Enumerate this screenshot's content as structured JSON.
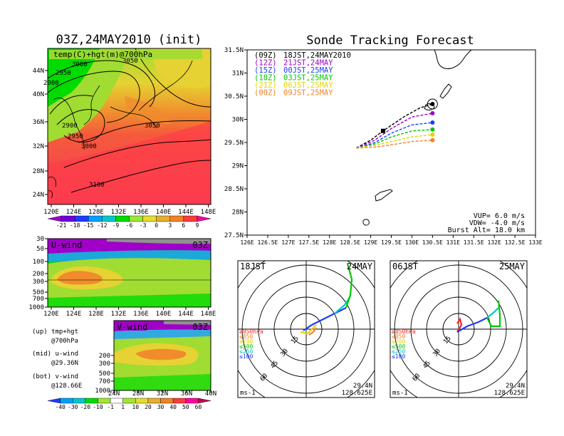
{
  "map_panel": {
    "title": "03Z,24MAY2010 (init)",
    "field_label": "temp(C)+hgt(m)@700hPa",
    "lat_ticks": [
      "44N",
      "40N",
      "36N",
      "32N",
      "28N",
      "24N"
    ],
    "lon_ticks": [
      "120E",
      "124E",
      "128E",
      "132E",
      "136E",
      "140E",
      "144E",
      "148E"
    ],
    "contour_labels": [
      "3000",
      "3050",
      "2950",
      "2900",
      "2900",
      "2950",
      "3000",
      "3050",
      "3100"
    ],
    "colorbar": {
      "labels": [
        "-21",
        "-18",
        "-15",
        "-12",
        "-9",
        "-6",
        "-3",
        "0",
        "3",
        "6",
        "9"
      ],
      "colors": [
        "#a000c8",
        "#6e00dc",
        "#1e3cff",
        "#00a0ff",
        "#00c8c8",
        "#00dc00",
        "#a0e632",
        "#e6dc32",
        "#e6af2d",
        "#f08228",
        "#fa3c3c",
        "#ff00a0"
      ]
    }
  },
  "uwind_panel": {
    "label": "U-wind",
    "time": "03Z",
    "pressure_ticks": [
      "30",
      "50",
      "100",
      "200",
      "300",
      "500",
      "700",
      "1000"
    ],
    "lon_ticks": [
      "120E",
      "124E",
      "128E",
      "132E",
      "136E",
      "140E",
      "144E",
      "148E"
    ]
  },
  "vwind_panel": {
    "label": "V-wind",
    "time": "03Z",
    "pressure_ticks": [
      "200",
      "300",
      "500",
      "700",
      "1000"
    ],
    "lat_ticks": [
      "24N",
      "28N",
      "32N",
      "36N",
      "40N"
    ],
    "colorbar": {
      "labels": [
        "-40",
        "-30",
        "-20",
        "-10",
        "-1",
        "1",
        "10",
        "20",
        "30",
        "40",
        "50",
        "60"
      ],
      "colors": [
        "#1e3cff",
        "#00a0ff",
        "#00c8c8",
        "#00dc00",
        "#a0e632",
        "#ffffff",
        "#a0e632",
        "#e6dc32",
        "#e6af2d",
        "#f08228",
        "#fa3c3c",
        "#ff00a0",
        "#c80050"
      ]
    }
  },
  "legend_notes": [
    {
      "head": "(up) tmp+hgt",
      "sub": "@700hPa"
    },
    {
      "head": "(mid) u-wind",
      "sub": "@29.36N"
    },
    {
      "head": "(bot) v-wind",
      "sub": "@128.66E"
    }
  ],
  "tracking": {
    "title": "Sonde Tracking Forecast",
    "lat_ticks": [
      "31.5N",
      "31N",
      "30.5N",
      "30N",
      "29.5N",
      "29N",
      "28.5N",
      "28N",
      "27.5N"
    ],
    "lon_ticks": [
      "126E",
      "126.5E",
      "127E",
      "127.5E",
      "128E",
      "128.5E",
      "129E",
      "129.5E",
      "130E",
      "130.5E",
      "131E",
      "131.5E",
      "132E",
      "132.5E",
      "133E"
    ],
    "series": [
      {
        "code": "(09Z)",
        "label": "18JST,24MAY2010",
        "color": "#000000"
      },
      {
        "code": "(12Z)",
        "label": "21JST,24MAY",
        "color": "#a000c8"
      },
      {
        "code": "(15Z)",
        "label": "00JST,25MAY",
        "color": "#1e3cff"
      },
      {
        "code": "(18Z)",
        "label": "03JST,25MAY",
        "color": "#00c800"
      },
      {
        "code": "(21Z)",
        "label": "06JST,25MAY",
        "color": "#e6d200"
      },
      {
        "code": "(00Z)",
        "label": "09JST,25MAY",
        "color": "#f08228"
      }
    ],
    "params": [
      "VUP= 6.0 m/s",
      "VDW= -4.0 m/s",
      "Burst Alt= 18.0 km"
    ]
  },
  "chart_data": [
    {
      "type": "line",
      "title": "Sonde Tracking Forecast",
      "xlim": [
        126,
        133
      ],
      "ylim": [
        27.5,
        31.5
      ],
      "series": [
        {
          "name": "(09Z) 18JST,24MAY2010",
          "x": [
            128.65,
            129.0,
            129.3,
            129.8,
            130.2,
            130.5
          ],
          "y": [
            29.38,
            29.55,
            29.75,
            30.05,
            30.25,
            30.33
          ]
        },
        {
          "name": "(12Z) 21JST,24MAY",
          "x": [
            128.65,
            129.1,
            129.5,
            130.0,
            130.5
          ],
          "y": [
            29.38,
            29.55,
            29.8,
            30.05,
            30.13
          ]
        },
        {
          "name": "(15Z) 00JST,25MAY",
          "x": [
            128.65,
            129.1,
            129.5,
            130.0,
            130.5
          ],
          "y": [
            29.38,
            29.5,
            29.7,
            29.88,
            29.93
          ]
        },
        {
          "name": "(18Z) 03JST,25MAY",
          "x": [
            128.65,
            129.1,
            129.5,
            130.0,
            130.5
          ],
          "y": [
            29.38,
            29.47,
            29.62,
            29.75,
            29.78
          ]
        },
        {
          "name": "(21Z) 06JST,25MAY",
          "x": [
            128.65,
            129.1,
            129.5,
            130.0,
            130.5
          ],
          "y": [
            29.38,
            29.44,
            29.52,
            29.62,
            29.67
          ]
        },
        {
          "name": "(00Z) 09JST,25MAY",
          "x": [
            128.65,
            129.1,
            129.5,
            130.0,
            130.5
          ],
          "y": [
            29.38,
            29.4,
            29.45,
            29.52,
            29.55
          ]
        }
      ]
    }
  ],
  "hodographs": [
    {
      "time": "18JST",
      "date": "24MAY",
      "lat": "29.4N",
      "lon": "128.625E",
      "unit": "ms-1",
      "ring_labels": [
        "15",
        "30",
        "45",
        "60"
      ],
      "levels": [
        {
          "label": "≥850hPa",
          "color": "#ff2020"
        },
        {
          "label": "≤850",
          "color": "#f08228"
        },
        {
          "label": "≤700",
          "color": "#e6d200"
        },
        {
          "label": "≤500",
          "color": "#00c800"
        },
        {
          "label": "≤250",
          "color": "#00c8c8"
        },
        {
          "label": "≤100",
          "color": "#1e3cff"
        }
      ]
    },
    {
      "time": "06JST",
      "date": "25MAY",
      "lat": "29.4N",
      "lon": "128.625E",
      "unit": "ms-1",
      "ring_labels": [
        "15",
        "30",
        "45",
        "60"
      ],
      "levels": [
        {
          "label": "≥850hPa",
          "color": "#ff2020"
        },
        {
          "label": "≤850",
          "color": "#f08228"
        },
        {
          "label": "≤700",
          "color": "#e6d200"
        },
        {
          "label": "≤500",
          "color": "#00c800"
        },
        {
          "label": "≤250",
          "color": "#00c8c8"
        },
        {
          "label": "≤100",
          "color": "#1e3cff"
        }
      ]
    }
  ]
}
